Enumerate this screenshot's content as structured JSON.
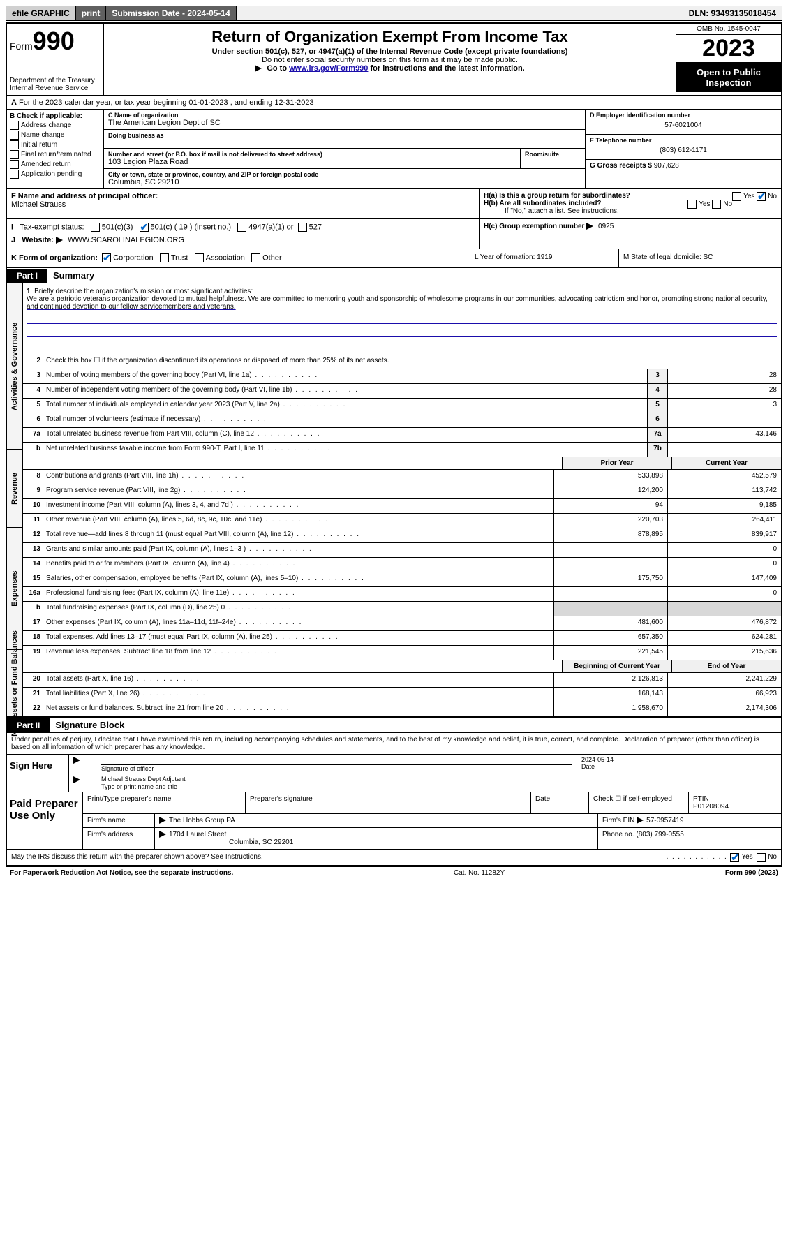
{
  "topbar": {
    "efile": "efile GRAPHIC",
    "print": "print",
    "sub_label": "Submission Date - 2024-05-14",
    "dln": "DLN: 93493135018454"
  },
  "header": {
    "form": "Form",
    "num": "990",
    "dept": "Department of the Treasury Internal Revenue Service",
    "title": "Return of Organization Exempt From Income Tax",
    "sub1": "Under section 501(c), 527, or 4947(a)(1) of the Internal Revenue Code (except private foundations)",
    "sub2": "Do not enter social security numbers on this form as it may be made public.",
    "sub3_pre": "Go to ",
    "sub3_link": "www.irs.gov/Form990",
    "sub3_post": " for instructions and the latest information.",
    "omb": "OMB No. 1545-0047",
    "year": "2023",
    "open": "Open to Public Inspection"
  },
  "row_a": "For the 2023 calendar year, or tax year beginning 01-01-2023   , and ending 12-31-2023",
  "col_b": {
    "title": "B Check if applicable:",
    "opts": [
      "Address change",
      "Name change",
      "Initial return",
      "Final return/terminated",
      "Amended return",
      "Application pending"
    ]
  },
  "col_c": {
    "name_label": "C Name of organization",
    "name": "The American Legion Dept of SC",
    "dba_label": "Doing business as",
    "addr_label": "Number and street (or P.O. box if mail is not delivered to street address)",
    "room_label": "Room/suite",
    "addr": "103 Legion Plaza Road",
    "city_label": "City or town, state or province, country, and ZIP or foreign postal code",
    "city": "Columbia, SC  29210"
  },
  "col_d": {
    "ein_label": "D Employer identification number",
    "ein": "57-6021004",
    "tel_label": "E Telephone number",
    "tel": "(803) 612-1171",
    "gross_label": "G Gross receipts $",
    "gross": "907,628"
  },
  "row_f": {
    "label": "F  Name and address of principal officer:",
    "name": "Michael Strauss"
  },
  "row_h": {
    "ha": "H(a)  Is this a group return for subordinates?",
    "hb": "H(b)  Are all subordinates included?",
    "hb_note": "If \"No,\" attach a list. See instructions.",
    "hc": "H(c)  Group exemption number",
    "hc_val": "0925",
    "yes": "Yes",
    "no": "No"
  },
  "row_i": {
    "label": "Tax-exempt status:",
    "o1": "501(c)(3)",
    "o2": "501(c) ( 19 ) (insert no.)",
    "o3": "4947(a)(1) or",
    "o4": "527"
  },
  "row_j": {
    "label": "Website:",
    "val": "WWW.SCAROLINALEGION.ORG"
  },
  "row_k": {
    "label": "K Form of organization:",
    "opts": [
      "Corporation",
      "Trust",
      "Association",
      "Other"
    ],
    "l": "L Year of formation: 1919",
    "m": "M State of legal domicile: SC"
  },
  "parts": {
    "p1": "Part I",
    "p1t": "Summary",
    "p2": "Part II",
    "p2t": "Signature Block"
  },
  "vtabs": {
    "gov": "Activities & Governance",
    "rev": "Revenue",
    "exp": "Expenses",
    "net": "Net Assets or Fund Balances"
  },
  "mission": {
    "q": "Briefly describe the organization's mission or most significant activities:",
    "text": "We are a patriotic veterans organization devoted to mutual helpfulness. We are committed to mentoring youth and sponsorship of wholesome programs in our communities, advocating patriotism and honor, promoting strong national security, and continued devotion to our fellow servicemembers and veterans."
  },
  "lines_gov": [
    {
      "n": "2",
      "d": "Check this box ☐ if the organization discontinued its operations or disposed of more than 25% of its net assets.",
      "ref": "",
      "v": ""
    },
    {
      "n": "3",
      "d": "Number of voting members of the governing body (Part VI, line 1a)",
      "ref": "3",
      "v": "28"
    },
    {
      "n": "4",
      "d": "Number of independent voting members of the governing body (Part VI, line 1b)",
      "ref": "4",
      "v": "28"
    },
    {
      "n": "5",
      "d": "Total number of individuals employed in calendar year 2023 (Part V, line 2a)",
      "ref": "5",
      "v": "3"
    },
    {
      "n": "6",
      "d": "Total number of volunteers (estimate if necessary)",
      "ref": "6",
      "v": ""
    },
    {
      "n": "7a",
      "d": "Total unrelated business revenue from Part VIII, column (C), line 12",
      "ref": "7a",
      "v": "43,146"
    },
    {
      "n": "b",
      "d": "Net unrelated business taxable income from Form 990-T, Part I, line 11",
      "ref": "7b",
      "v": ""
    }
  ],
  "twocol_headers": {
    "py": "Prior Year",
    "cy": "Current Year",
    "boy": "Beginning of Current Year",
    "eoy": "End of Year"
  },
  "lines_rev": [
    {
      "n": "8",
      "d": "Contributions and grants (Part VIII, line 1h)",
      "py": "533,898",
      "cy": "452,579"
    },
    {
      "n": "9",
      "d": "Program service revenue (Part VIII, line 2g)",
      "py": "124,200",
      "cy": "113,742"
    },
    {
      "n": "10",
      "d": "Investment income (Part VIII, column (A), lines 3, 4, and 7d )",
      "py": "94",
      "cy": "9,185"
    },
    {
      "n": "11",
      "d": "Other revenue (Part VIII, column (A), lines 5, 6d, 8c, 9c, 10c, and 11e)",
      "py": "220,703",
      "cy": "264,411"
    },
    {
      "n": "12",
      "d": "Total revenue—add lines 8 through 11 (must equal Part VIII, column (A), line 12)",
      "py": "878,895",
      "cy": "839,917"
    }
  ],
  "lines_exp": [
    {
      "n": "13",
      "d": "Grants and similar amounts paid (Part IX, column (A), lines 1–3 )",
      "py": "",
      "cy": "0"
    },
    {
      "n": "14",
      "d": "Benefits paid to or for members (Part IX, column (A), line 4)",
      "py": "",
      "cy": "0"
    },
    {
      "n": "15",
      "d": "Salaries, other compensation, employee benefits (Part IX, column (A), lines 5–10)",
      "py": "175,750",
      "cy": "147,409"
    },
    {
      "n": "16a",
      "d": "Professional fundraising fees (Part IX, column (A), line 11e)",
      "py": "",
      "cy": "0"
    },
    {
      "n": "b",
      "d": "Total fundraising expenses (Part IX, column (D), line 25) 0",
      "py": "",
      "cy": "",
      "gray": true
    },
    {
      "n": "17",
      "d": "Other expenses (Part IX, column (A), lines 11a–11d, 11f–24e)",
      "py": "481,600",
      "cy": "476,872"
    },
    {
      "n": "18",
      "d": "Total expenses. Add lines 13–17 (must equal Part IX, column (A), line 25)",
      "py": "657,350",
      "cy": "624,281"
    },
    {
      "n": "19",
      "d": "Revenue less expenses. Subtract line 18 from line 12",
      "py": "221,545",
      "cy": "215,636"
    }
  ],
  "lines_net": [
    {
      "n": "20",
      "d": "Total assets (Part X, line 16)",
      "py": "2,126,813",
      "cy": "2,241,229"
    },
    {
      "n": "21",
      "d": "Total liabilities (Part X, line 26)",
      "py": "168,143",
      "cy": "66,923"
    },
    {
      "n": "22",
      "d": "Net assets or fund balances. Subtract line 21 from line 20",
      "py": "1,958,670",
      "cy": "2,174,306"
    }
  ],
  "perjury": "Under penalties of perjury, I declare that I have examined this return, including accompanying schedules and statements, and to the best of my knowledge and belief, it is true, correct, and complete. Declaration of preparer (other than officer) is based on all information of which preparer has any knowledge.",
  "sign": {
    "here": "Sign Here",
    "sig_label": "Signature of officer",
    "date_label": "Date",
    "date": "2024-05-14",
    "name": "Michael Strauss  Dept Adjutant",
    "name_label": "Type or print name and title"
  },
  "paid": {
    "title": "Paid Preparer Use Only",
    "h1": "Print/Type preparer's name",
    "h2": "Preparer's signature",
    "h3": "Date",
    "check": "Check ☐ if self-employed",
    "ptin_l": "PTIN",
    "ptin": "P01208094",
    "firm_l": "Firm's name",
    "firm": "The Hobbs Group PA",
    "ein_l": "Firm's EIN",
    "ein": "57-0957419",
    "addr_l": "Firm's address",
    "addr": "1704 Laurel Street",
    "addr2": "Columbia, SC  29201",
    "phone_l": "Phone no.",
    "phone": "(803) 799-0555"
  },
  "footer": {
    "discuss": "May the IRS discuss this return with the preparer shown above? See Instructions.",
    "yes": "Yes",
    "no": "No",
    "pra": "For Paperwork Reduction Act Notice, see the separate instructions.",
    "cat": "Cat. No. 11282Y",
    "form": "Form 990 (2023)"
  }
}
